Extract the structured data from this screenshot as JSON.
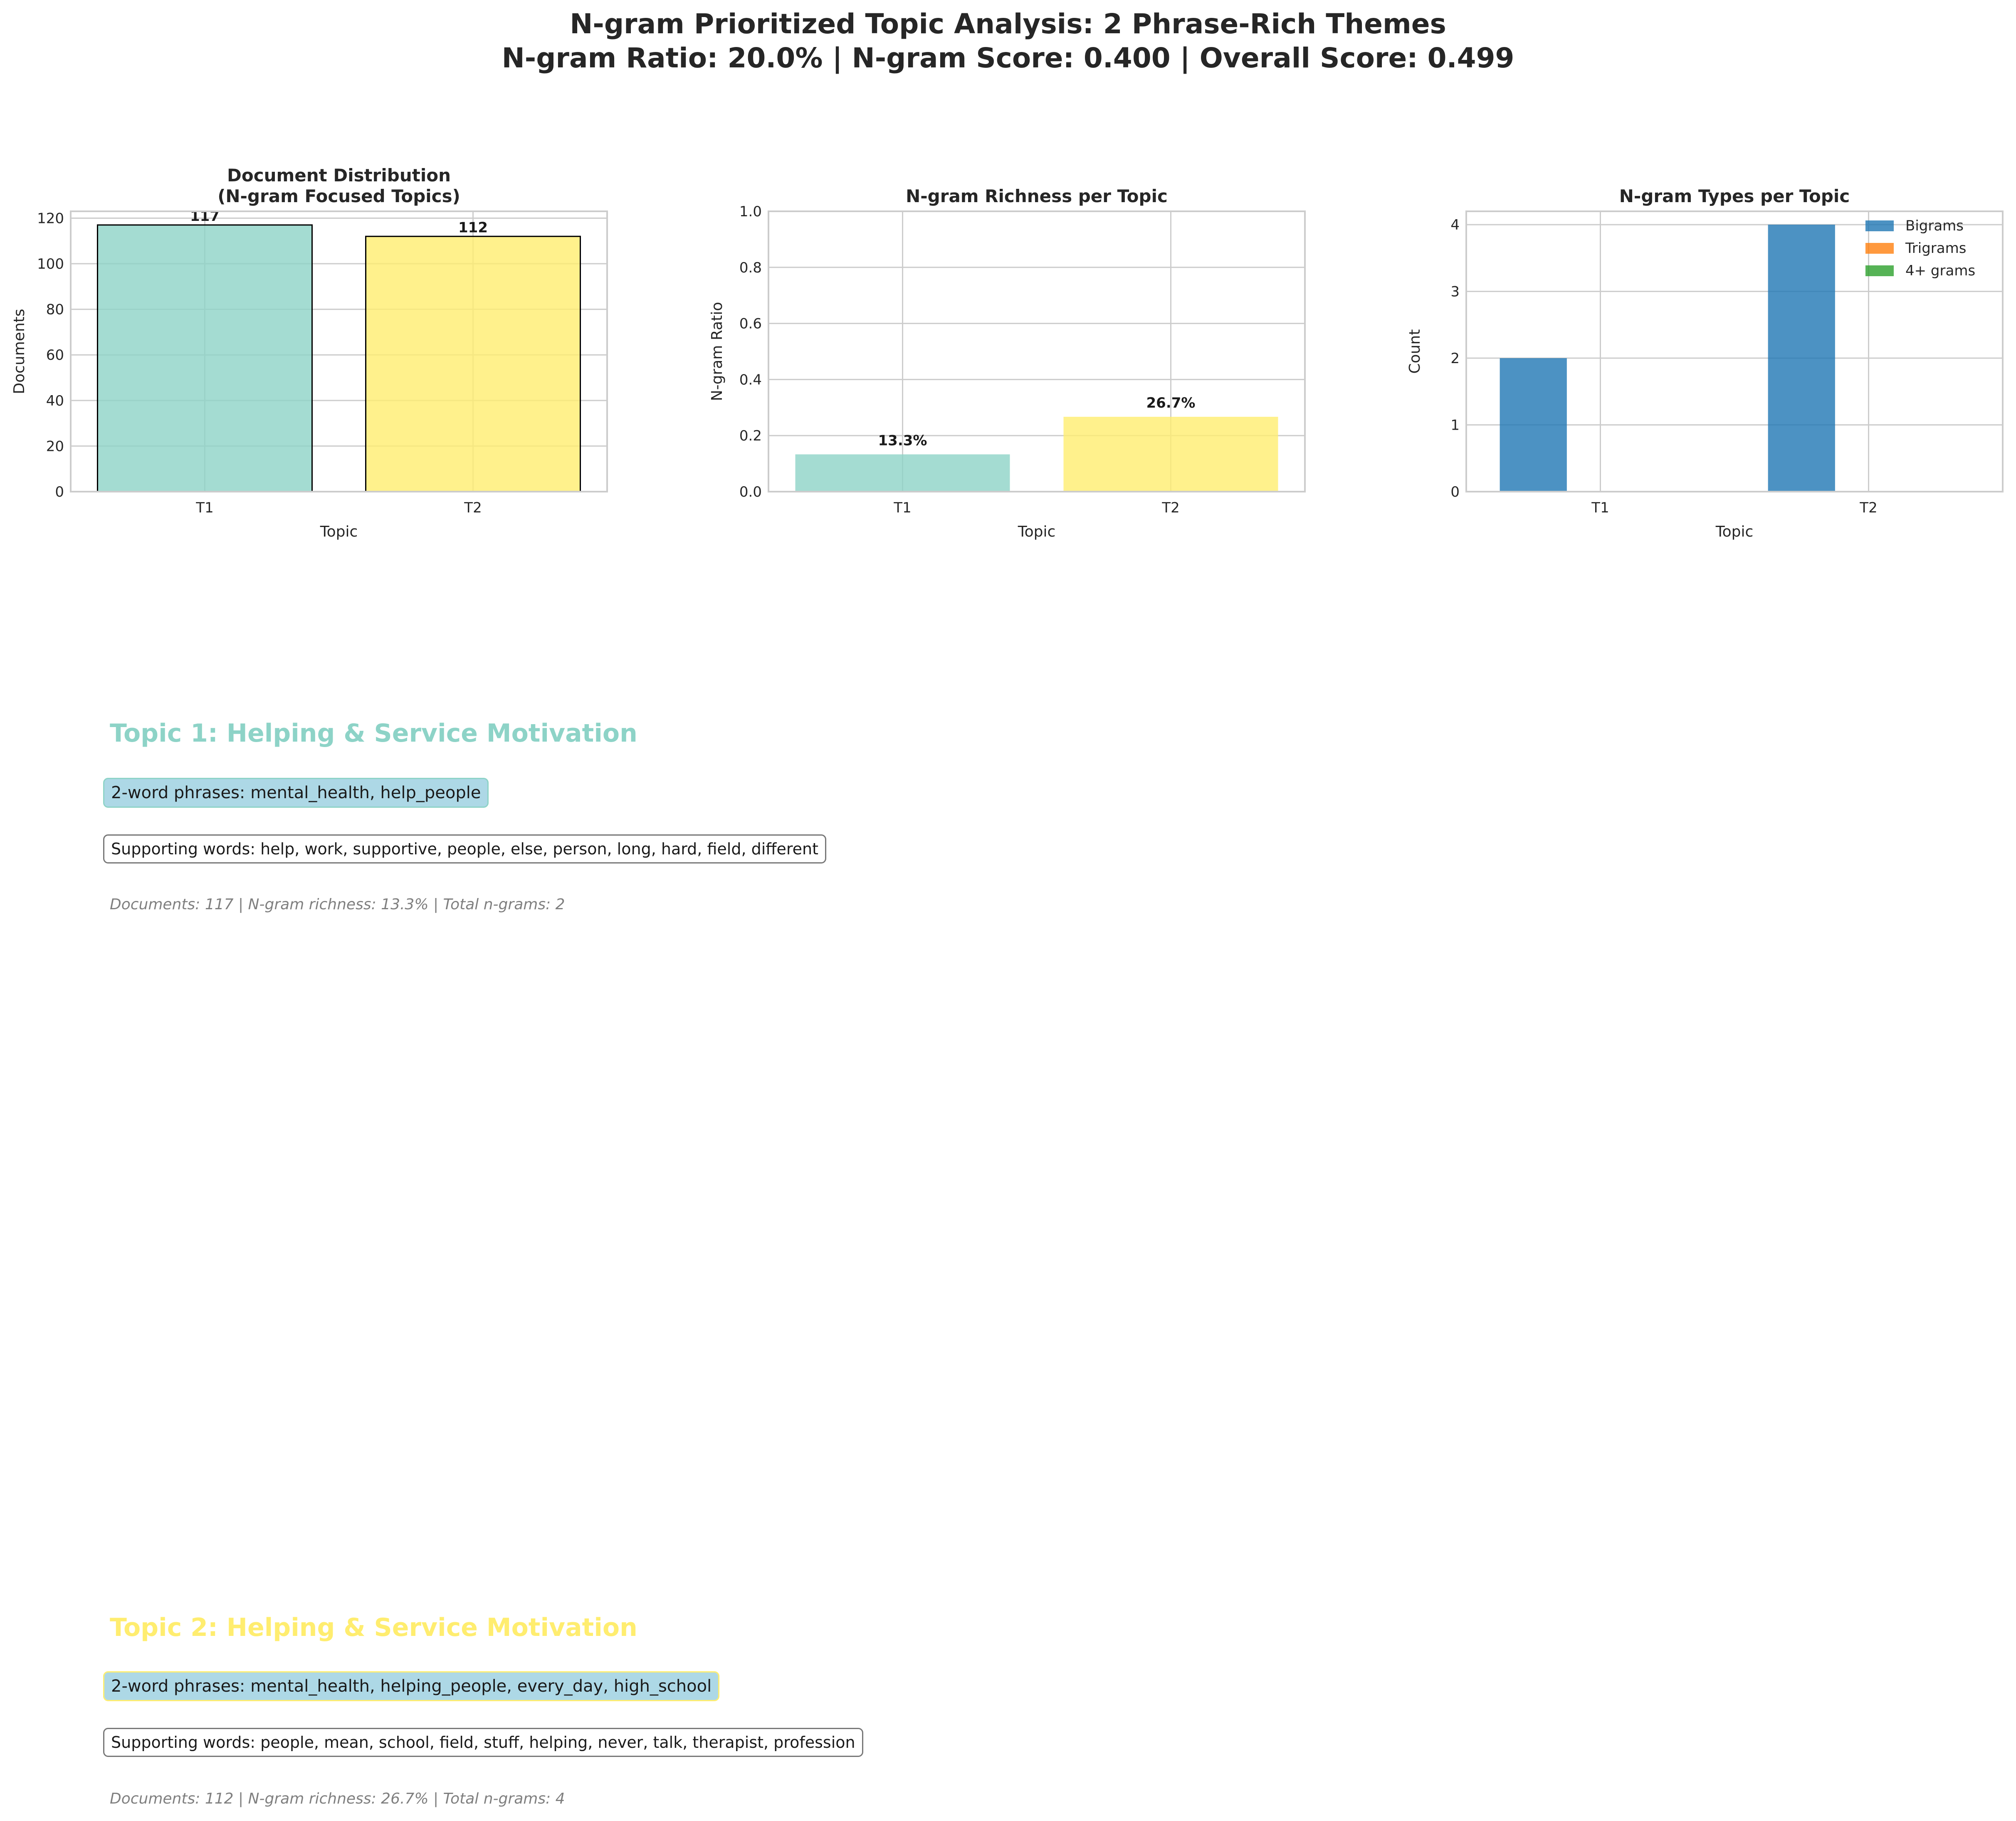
{
  "figure": {
    "title_line1": "N-gram Prioritized Topic Analysis: 2 Phrase-Rich Themes",
    "title_line2": "N-gram Ratio: 20.0% | N-gram Score: 0.400 | Overall Score: 0.499"
  },
  "colors": {
    "topic1": "#8dd3c7",
    "topic2": "#ffed6f",
    "bigrams": "#1f77b4",
    "trigrams": "#ff7f0e",
    "fourgrams": "#2ca02c"
  },
  "chart_data": [
    {
      "type": "bar",
      "title": "Document Distribution\n(N-gram Focused Topics)",
      "title_lines": [
        "Document Distribution",
        "(N-gram Focused Topics)"
      ],
      "xlabel": "Topic",
      "ylabel": "Documents",
      "categories": [
        "T1",
        "T2"
      ],
      "values": [
        117,
        112
      ],
      "data_labels": [
        "117",
        "112"
      ],
      "ylim": [
        0,
        123
      ],
      "yticks": [
        0,
        20,
        40,
        60,
        80,
        100,
        120
      ],
      "ytick_labels": [
        "0",
        "20",
        "40",
        "60",
        "80",
        "100",
        "120"
      ],
      "grid": true
    },
    {
      "type": "bar",
      "title": "N-gram Richness per Topic",
      "xlabel": "Topic",
      "ylabel": "N-gram Ratio",
      "categories": [
        "T1",
        "T2"
      ],
      "values": [
        0.133,
        0.267
      ],
      "data_labels": [
        "13.3%",
        "26.7%"
      ],
      "ylim": [
        0,
        1
      ],
      "yticks": [
        0,
        0.2,
        0.4,
        0.6,
        0.8,
        1.0
      ],
      "ytick_labels": [
        "0.0",
        "0.2",
        "0.4",
        "0.6",
        "0.8",
        "1.0"
      ],
      "grid": true
    },
    {
      "type": "bar",
      "title": "N-gram Types per Topic",
      "xlabel": "Topic",
      "ylabel": "Count",
      "categories": [
        "T1",
        "T2"
      ],
      "series": [
        {
          "name": "Bigrams",
          "values": [
            2,
            4
          ]
        },
        {
          "name": "Trigrams",
          "values": [
            0,
            0
          ]
        },
        {
          "name": "4+ grams",
          "values": [
            0,
            0
          ]
        }
      ],
      "ylim": [
        0,
        4.2
      ],
      "yticks": [
        0,
        1,
        2,
        3,
        4
      ],
      "ytick_labels": [
        "0",
        "1",
        "2",
        "3",
        "4"
      ],
      "legend": "top-right",
      "grid": true
    }
  ],
  "topics": [
    {
      "title": "Topic 1: Helping & Service Motivation",
      "phrases": "2-word phrases: mental_health, help_people",
      "supporting": "Supporting words: help, work, supportive, people, else, person, long, hard, field, different",
      "stats": "Documents: 117 | N-gram richness: 13.3% | Total n-grams: 2"
    },
    {
      "title": "Topic 2: Helping & Service Motivation",
      "phrases": "2-word phrases: mental_health, helping_people, every_day, high_school",
      "supporting": "Supporting words: people, mean, school, field, stuff, helping, never, talk, therapist, profession",
      "stats": "Documents: 112 | N-gram richness: 26.7% | Total n-grams: 4"
    }
  ]
}
